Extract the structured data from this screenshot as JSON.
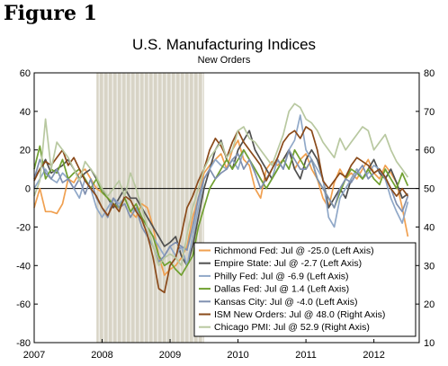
{
  "figure_label": "Figure 1",
  "chart_data": {
    "type": "line",
    "title": "U.S. Manufacturing Indices",
    "subtitle": "New Orders",
    "x_tick_labels": [
      "2007",
      "2008",
      "2009",
      "2010",
      "2011",
      "2012"
    ],
    "left_axis": {
      "ylim": [
        -80,
        60
      ],
      "ticks": [
        -80,
        -60,
        -40,
        -20,
        0,
        20,
        40,
        60
      ]
    },
    "right_axis": {
      "ylim": [
        10,
        80
      ],
      "ticks": [
        10,
        20,
        30,
        40,
        50,
        60,
        70,
        80
      ]
    },
    "recession_shading": {
      "start": "2007-12",
      "end": "2009-06",
      "color": "#d8d4c6"
    },
    "legend_position": "bottom-right",
    "grid": false,
    "series": [
      {
        "name": "Richmond Fed: Jul @ -25.0 (Left Axis)",
        "axis": "left",
        "color": "#f0a050",
        "start": "2007-01",
        "values": [
          -10,
          0,
          -12,
          -12,
          -13,
          -8,
          5,
          3,
          8,
          10,
          5,
          0,
          -2,
          -5,
          -8,
          -10,
          -5,
          -12,
          -15,
          -8,
          -10,
          -20,
          -35,
          -45,
          -42,
          -40,
          -36,
          -30,
          -15,
          -5,
          8,
          12,
          15,
          18,
          10,
          20,
          25,
          15,
          12,
          0,
          -5,
          10,
          14,
          12,
          15,
          20,
          10,
          15,
          18,
          10,
          5,
          -5,
          -10,
          3,
          10,
          5,
          8,
          5,
          10,
          15,
          8,
          5,
          12,
          8,
          3,
          -10,
          -25
        ]
      },
      {
        "name": "Empire State: Jul @ -2.7 (Left Axis)",
        "axis": "left",
        "color": "#505050",
        "start": "2007-01",
        "values": [
          5,
          10,
          15,
          8,
          10,
          12,
          15,
          10,
          5,
          8,
          10,
          5,
          0,
          -5,
          -10,
          -5,
          0,
          -5,
          -5,
          -10,
          -15,
          -20,
          -25,
          -30,
          -28,
          -25,
          -35,
          -40,
          -30,
          -15,
          0,
          10,
          20,
          25,
          15,
          10,
          20,
          25,
          30,
          20,
          15,
          10,
          5,
          10,
          15,
          20,
          10,
          5,
          15,
          20,
          15,
          5,
          -10,
          -5,
          0,
          -5,
          5,
          10,
          5,
          10,
          15,
          8,
          5,
          10,
          3,
          -5,
          -2.7
        ]
      },
      {
        "name": "Philly Fed: Jul @ -6.9 (Left Axis)",
        "axis": "left",
        "color": "#90a8c8",
        "start": "2007-01",
        "values": [
          0,
          5,
          10,
          5,
          3,
          8,
          5,
          0,
          -5,
          5,
          0,
          -10,
          -15,
          -10,
          -5,
          -8,
          -5,
          -12,
          -10,
          -15,
          -20,
          -25,
          -30,
          -35,
          -30,
          -35,
          -30,
          -40,
          -25,
          -10,
          5,
          10,
          15,
          12,
          10,
          15,
          10,
          20,
          15,
          10,
          5,
          0,
          5,
          15,
          10,
          20,
          25,
          38,
          20,
          15,
          10,
          5,
          -15,
          -20,
          -5,
          0,
          5,
          10,
          5,
          8,
          12,
          10,
          5,
          -5,
          -12,
          -18,
          -6.9
        ]
      },
      {
        "name": "Dallas Fed: Jul @ 1.4 (Left Axis)",
        "axis": "left",
        "color": "#70a030",
        "start": "2007-01",
        "values": [
          10,
          22,
          5,
          10,
          8,
          15,
          5,
          8,
          10,
          5,
          0,
          5,
          -2,
          -5,
          -8,
          -10,
          -5,
          -12,
          -8,
          -15,
          -20,
          -25,
          -35,
          -40,
          -38,
          -42,
          -45,
          -40,
          -35,
          -20,
          -10,
          0,
          5,
          10,
          15,
          10,
          15,
          20,
          15,
          10,
          5,
          0,
          5,
          10,
          15,
          10,
          20,
          15,
          10,
          15,
          5,
          0,
          -5,
          -10,
          -2,
          5,
          10,
          8,
          5,
          10,
          5,
          2,
          10,
          5,
          0,
          8,
          1.4
        ]
      },
      {
        "name": "Kansas City: Jul @ -4.0 (Left Axis)",
        "axis": "left",
        "color": "#8090b0",
        "start": "2007-01",
        "values": [
          5,
          15,
          8,
          5,
          10,
          3,
          5,
          0,
          5,
          -3,
          5,
          -5,
          -10,
          -15,
          -5,
          -10,
          -8,
          -15,
          -10,
          -20,
          -25,
          -30,
          -38,
          -35,
          -30,
          -28,
          -30,
          -32,
          -20,
          -5,
          5,
          10,
          5,
          8,
          10,
          15,
          18,
          10,
          15,
          8,
          0,
          5,
          10,
          15,
          10,
          20,
          15,
          10,
          10,
          15,
          5,
          0,
          -5,
          -10,
          0,
          5,
          3,
          8,
          12,
          5,
          8,
          10,
          5,
          0,
          -8,
          -12,
          -4.0
        ]
      },
      {
        "name": "ISM New Orders: Jul @ 48.0 (Right Axis)",
        "axis": "right",
        "color": "#8a4a1a",
        "start": "2007-01",
        "values": [
          52,
          55,
          57,
          56,
          58,
          60,
          56,
          58,
          55,
          52,
          50,
          48,
          45,
          43,
          46,
          44,
          48,
          47,
          44,
          42,
          38,
          32,
          24,
          23,
          30,
          32,
          38,
          45,
          48,
          52,
          55,
          60,
          63,
          61,
          58,
          62,
          65,
          62,
          60,
          58,
          56,
          52,
          55,
          58,
          62,
          64,
          65,
          63,
          66,
          65,
          60,
          52,
          50,
          52,
          54,
          53,
          56,
          58,
          57,
          56,
          54,
          55,
          53,
          50,
          48,
          50,
          48.0
        ]
      },
      {
        "name": "Chicago PMI: Jul @ 52.9 (Right Axis)",
        "axis": "right",
        "color": "#b8c8a0",
        "start": "2007-01",
        "values": [
          48,
          52,
          68,
          55,
          62,
          60,
          58,
          55,
          52,
          57,
          55,
          53,
          50,
          48,
          50,
          52,
          48,
          54,
          50,
          45,
          40,
          35,
          30,
          32,
          33,
          32,
          30,
          38,
          45,
          50,
          55,
          58,
          60,
          62,
          58,
          60,
          65,
          66,
          63,
          62,
          60,
          58,
          56,
          60,
          64,
          70,
          72,
          71,
          68,
          67,
          65,
          62,
          60,
          58,
          63,
          60,
          62,
          64,
          66,
          65,
          60,
          62,
          64,
          60,
          57,
          55,
          52.9
        ]
      }
    ]
  }
}
